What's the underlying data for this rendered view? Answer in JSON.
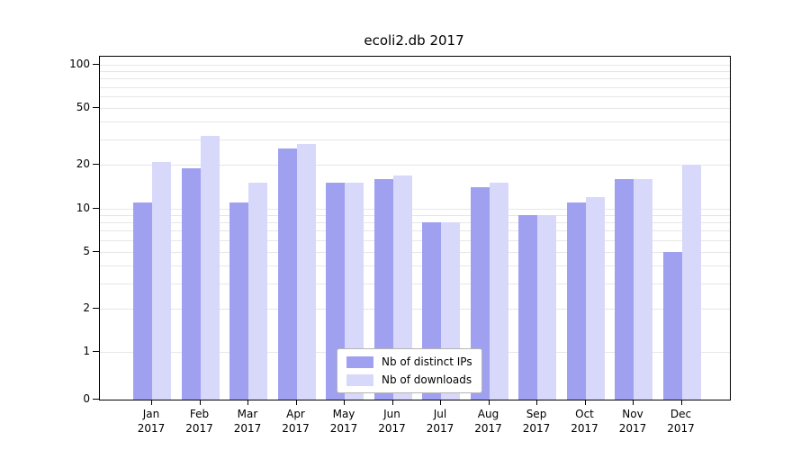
{
  "title": "ecoli2.db 2017",
  "chart_data": {
    "type": "bar",
    "months": [
      "Jan",
      "Feb",
      "Mar",
      "Apr",
      "May",
      "Jun",
      "Jul",
      "Aug",
      "Sep",
      "Oct",
      "Nov",
      "Dec"
    ],
    "year": "2017",
    "series": [
      {
        "name": "Nb of distinct IPs",
        "color": "#a0a0f0",
        "values": [
          11,
          19,
          11,
          26,
          15,
          16,
          8,
          14,
          9,
          11,
          16,
          5
        ]
      },
      {
        "name": "Nb of downloads",
        "color": "#d8d8fa",
        "values": [
          21,
          32,
          15,
          28,
          15,
          17,
          8,
          15,
          9,
          12,
          16,
          20
        ]
      }
    ],
    "yticks": [
      0,
      1,
      2,
      5,
      10,
      20,
      50,
      100
    ],
    "grid_values": [
      1,
      2,
      3,
      4,
      5,
      6,
      7,
      8,
      9,
      10,
      20,
      30,
      40,
      50,
      60,
      70,
      80,
      90,
      100
    ],
    "ylim": [
      0,
      100
    ],
    "scale": "symlog",
    "grid": "on",
    "legend_position": "bottom-center"
  }
}
